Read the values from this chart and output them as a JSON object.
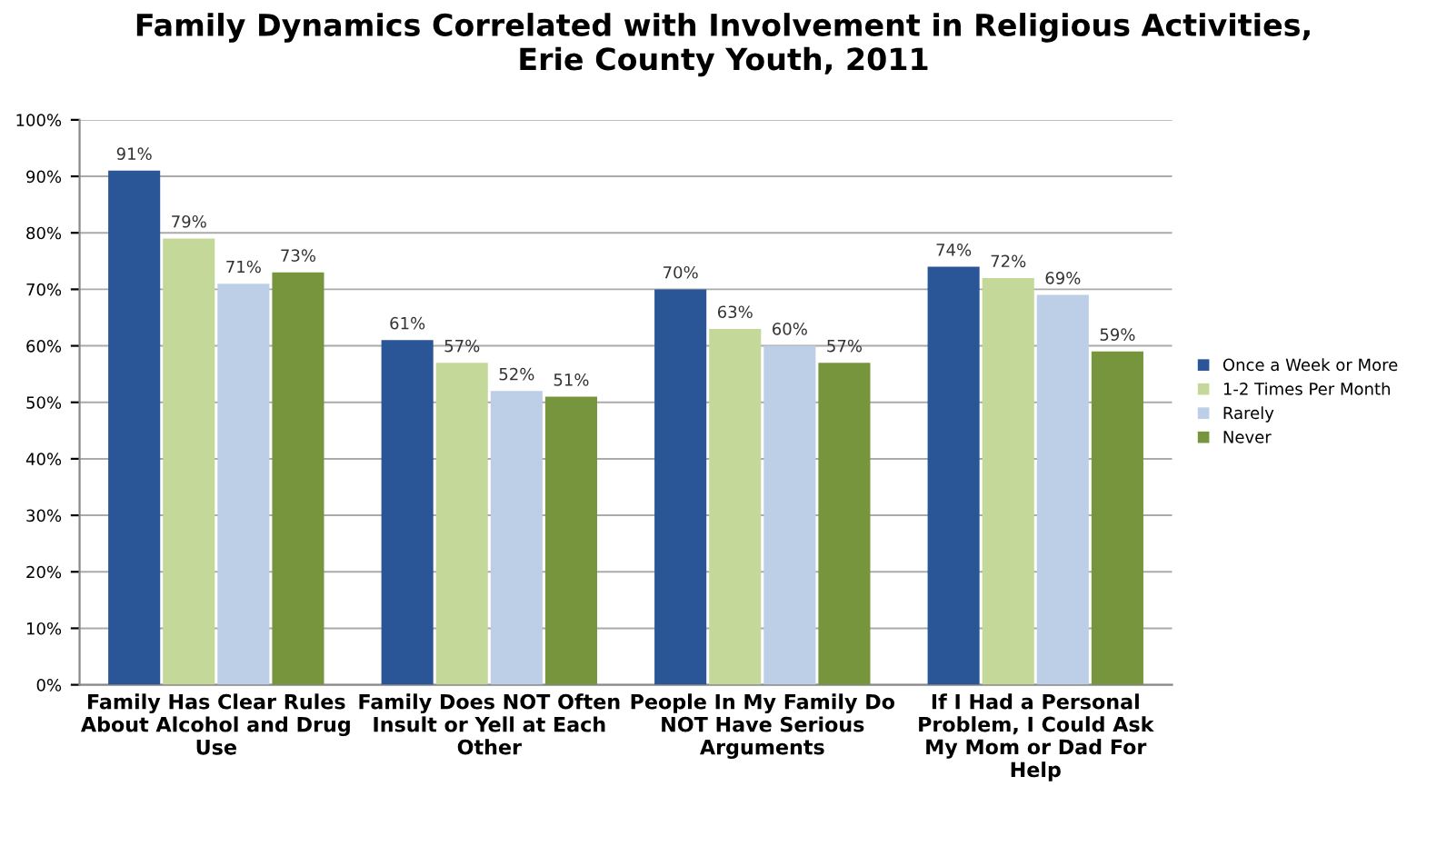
{
  "chart_data": {
    "type": "bar",
    "title": "Family Dynamics Correlated with Involvement in Religious Activities,\nErie County Youth, 2011",
    "categories": [
      "Family Has Clear Rules\nAbout Alcohol and Drug\nUse",
      "Family Does NOT Often\nInsult or Yell at Each\nOther",
      "People In My Family Do\nNOT Have Serious\nArguments",
      "If I Had a Personal\nProblem, I Could Ask\nMy Mom or Dad For\nHelp"
    ],
    "series": [
      {
        "name": "Once a Week or More",
        "color": "#2a5597",
        "values": [
          91,
          61,
          70,
          74
        ],
        "value_labels": [
          "91%",
          "61%",
          "70%",
          "74%"
        ]
      },
      {
        "name": "1-2 Times Per Month",
        "color": "#c4d89a",
        "values": [
          79,
          57,
          63,
          72
        ],
        "value_labels": [
          "79%",
          "57%",
          "63%",
          "72%"
        ]
      },
      {
        "name": "Rarely",
        "color": "#bccfe6",
        "values": [
          71,
          52,
          60,
          69
        ],
        "value_labels": [
          "71%",
          "52%",
          "60%",
          "69%"
        ]
      },
      {
        "name": "Never",
        "color": "#77953d",
        "values": [
          73,
          51,
          57,
          59
        ],
        "value_labels": [
          "73%",
          "51%",
          "57%",
          "59%"
        ]
      }
    ],
    "ylim": [
      0,
      100
    ],
    "yticks": [
      {
        "value": 0,
        "label": "0%"
      },
      {
        "value": 10,
        "label": "10%"
      },
      {
        "value": 20,
        "label": "20%"
      },
      {
        "value": 30,
        "label": "30%"
      },
      {
        "value": 40,
        "label": "40%"
      },
      {
        "value": 50,
        "label": "50%"
      },
      {
        "value": 60,
        "label": "60%"
      },
      {
        "value": 70,
        "label": "70%"
      },
      {
        "value": 80,
        "label": "80%"
      },
      {
        "value": 90,
        "label": "90%"
      },
      {
        "value": 100,
        "label": "100%"
      }
    ],
    "grid": "y",
    "legend": "right"
  }
}
